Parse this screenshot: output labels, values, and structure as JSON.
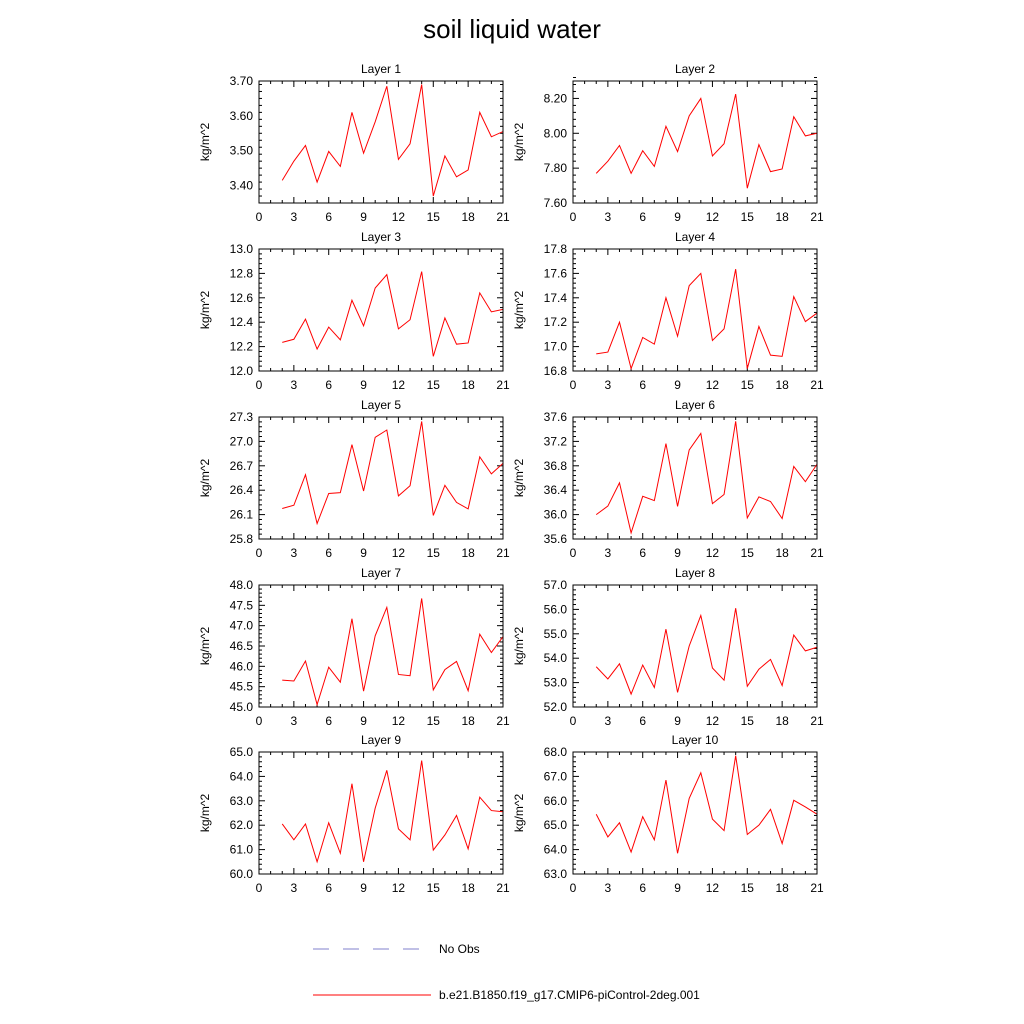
{
  "title": "soil liquid water",
  "legend": {
    "position": "bottom-center",
    "entries": [
      {
        "label": "No Obs",
        "color": "#8080cc",
        "style": "dashed"
      },
      {
        "label": "b.e21.B1850.f19_g17.CMIP6-piControl-2deg.001",
        "color": "#ff0000",
        "style": "solid"
      }
    ]
  },
  "chart_data": [
    {
      "type": "line",
      "title": "Layer 1",
      "ylabel": "kg/m^2",
      "xlim": [
        0,
        21
      ],
      "ylim": [
        3.35,
        3.7
      ],
      "xticks": [
        "0",
        "3",
        "6",
        "9",
        "12",
        "15",
        "18",
        "21"
      ],
      "yticks": [
        "3.40",
        "3.50",
        "3.60",
        "3.70"
      ],
      "x": [
        2,
        3,
        4,
        5,
        6,
        7,
        8,
        9,
        10,
        11,
        12,
        13,
        14,
        15,
        16,
        17,
        18,
        19,
        20,
        21
      ],
      "series": [
        {
          "name": "b.e21.B1850.f19_g17.CMIP6-piControl-2deg.001",
          "color": "#ff0000",
          "values": [
            3.415,
            3.47,
            3.515,
            3.41,
            3.498,
            3.455,
            3.61,
            3.493,
            3.583,
            3.685,
            3.475,
            3.52,
            3.69,
            3.37,
            3.485,
            3.425,
            3.445,
            3.61,
            3.54,
            3.555
          ]
        }
      ]
    },
    {
      "type": "line",
      "title": "Layer 2",
      "ylabel": "kg/m^2",
      "xlim": [
        0,
        21
      ],
      "ylim": [
        7.6,
        8.3
      ],
      "xticks": [
        "0",
        "3",
        "6",
        "9",
        "12",
        "15",
        "18",
        "21"
      ],
      "yticks": [
        "7.60",
        "7.80",
        "8.00",
        "8.20"
      ],
      "x": [
        2,
        3,
        4,
        5,
        6,
        7,
        8,
        9,
        10,
        11,
        12,
        13,
        14,
        15,
        16,
        17,
        18,
        19,
        20,
        21
      ],
      "series": [
        {
          "name": "b.e21.B1850.f19_g17.CMIP6-piControl-2deg.001",
          "color": "#ff0000",
          "values": [
            7.77,
            7.84,
            7.93,
            7.77,
            7.9,
            7.81,
            8.04,
            7.895,
            8.1,
            8.2,
            7.87,
            7.94,
            8.225,
            7.685,
            7.935,
            7.78,
            7.795,
            8.095,
            7.985,
            8.0
          ]
        }
      ]
    },
    {
      "type": "line",
      "title": "Layer 3",
      "ylabel": "kg/m^2",
      "xlim": [
        0,
        21
      ],
      "ylim": [
        12.0,
        13.0
      ],
      "xticks": [
        "0",
        "3",
        "6",
        "9",
        "12",
        "15",
        "18",
        "21"
      ],
      "yticks": [
        "12.0",
        "12.2",
        "12.4",
        "12.6",
        "12.8",
        "13.0"
      ],
      "x": [
        2,
        3,
        4,
        5,
        6,
        7,
        8,
        9,
        10,
        11,
        12,
        13,
        14,
        15,
        16,
        17,
        18,
        19,
        20,
        21
      ],
      "series": [
        {
          "name": "b.e21.B1850.f19_g17.CMIP6-piControl-2deg.001",
          "color": "#ff0000",
          "values": [
            12.235,
            12.26,
            12.425,
            12.18,
            12.36,
            12.255,
            12.58,
            12.37,
            12.68,
            12.79,
            12.345,
            12.42,
            12.815,
            12.12,
            12.435,
            12.22,
            12.23,
            12.64,
            12.485,
            12.505
          ]
        }
      ]
    },
    {
      "type": "line",
      "title": "Layer 4",
      "ylabel": "kg/m^2",
      "xlim": [
        0,
        21
      ],
      "ylim": [
        16.8,
        17.8
      ],
      "xticks": [
        "0",
        "3",
        "6",
        "9",
        "12",
        "15",
        "18",
        "21"
      ],
      "yticks": [
        "16.8",
        "17.0",
        "17.2",
        "17.4",
        "17.6",
        "17.8"
      ],
      "x": [
        2,
        3,
        4,
        5,
        6,
        7,
        8,
        9,
        10,
        11,
        12,
        13,
        14,
        15,
        16,
        17,
        18,
        19,
        20,
        21
      ],
      "series": [
        {
          "name": "b.e21.B1850.f19_g17.CMIP6-piControl-2deg.001",
          "color": "#ff0000",
          "values": [
            16.94,
            16.955,
            17.2,
            16.82,
            17.075,
            17.02,
            17.4,
            17.085,
            17.5,
            17.6,
            17.05,
            17.145,
            17.635,
            16.82,
            17.165,
            16.93,
            16.92,
            17.41,
            17.205,
            17.275
          ]
        }
      ]
    },
    {
      "type": "line",
      "title": "Layer 5",
      "ylabel": "kg/m^2",
      "xlim": [
        0,
        21
      ],
      "ylim": [
        25.8,
        27.3
      ],
      "xticks": [
        "0",
        "3",
        "6",
        "9",
        "12",
        "15",
        "18",
        "21"
      ],
      "yticks": [
        "25.8",
        "26.1",
        "26.4",
        "26.7",
        "27.0",
        "27.3"
      ],
      "x": [
        2,
        3,
        4,
        5,
        6,
        7,
        8,
        9,
        10,
        11,
        12,
        13,
        14,
        15,
        16,
        17,
        18,
        19,
        20,
        21
      ],
      "series": [
        {
          "name": "b.e21.B1850.f19_g17.CMIP6-piControl-2deg.001",
          "color": "#ff0000",
          "values": [
            26.175,
            26.215,
            26.59,
            25.99,
            26.36,
            26.37,
            26.96,
            26.39,
            27.05,
            27.14,
            26.33,
            26.455,
            27.245,
            26.09,
            26.46,
            26.25,
            26.17,
            26.81,
            26.6,
            26.73
          ]
        }
      ]
    },
    {
      "type": "line",
      "title": "Layer 6",
      "ylabel": "kg/m^2",
      "xlim": [
        0,
        21
      ],
      "ylim": [
        35.6,
        37.6
      ],
      "xticks": [
        "0",
        "3",
        "6",
        "9",
        "12",
        "15",
        "18",
        "21"
      ],
      "yticks": [
        "35.6",
        "36.0",
        "36.4",
        "36.8",
        "37.2",
        "37.6"
      ],
      "x": [
        2,
        3,
        4,
        5,
        6,
        7,
        8,
        9,
        10,
        11,
        12,
        13,
        14,
        15,
        16,
        17,
        18,
        19,
        20,
        21
      ],
      "series": [
        {
          "name": "b.e21.B1850.f19_g17.CMIP6-piControl-2deg.001",
          "color": "#ff0000",
          "values": [
            36.0,
            36.14,
            36.52,
            35.7,
            36.3,
            36.23,
            37.165,
            36.135,
            37.06,
            37.33,
            36.18,
            36.33,
            37.53,
            35.945,
            36.29,
            36.215,
            35.935,
            36.79,
            36.54,
            36.825
          ]
        }
      ]
    },
    {
      "type": "line",
      "title": "Layer 7",
      "ylabel": "kg/m^2",
      "xlim": [
        0,
        21
      ],
      "ylim": [
        45.0,
        48.0
      ],
      "xticks": [
        "0",
        "3",
        "6",
        "9",
        "12",
        "15",
        "18",
        "21"
      ],
      "yticks": [
        "45.0",
        "45.5",
        "46.0",
        "46.5",
        "47.0",
        "47.5",
        "48.0"
      ],
      "x": [
        2,
        3,
        4,
        5,
        6,
        7,
        8,
        9,
        10,
        11,
        12,
        13,
        14,
        15,
        16,
        17,
        18,
        19,
        20,
        21
      ],
      "series": [
        {
          "name": "b.e21.B1850.f19_g17.CMIP6-piControl-2deg.001",
          "color": "#ff0000",
          "values": [
            45.66,
            45.64,
            46.13,
            45.06,
            45.98,
            45.61,
            47.17,
            45.39,
            46.75,
            47.45,
            45.8,
            45.77,
            47.67,
            45.42,
            45.92,
            46.12,
            45.4,
            46.79,
            46.34,
            46.73
          ]
        }
      ]
    },
    {
      "type": "line",
      "title": "Layer 8",
      "ylabel": "kg/m^2",
      "xlim": [
        0,
        21
      ],
      "ylim": [
        52.0,
        57.0
      ],
      "xticks": [
        "0",
        "3",
        "6",
        "9",
        "12",
        "15",
        "18",
        "21"
      ],
      "yticks": [
        "52.0",
        "53.0",
        "54.0",
        "55.0",
        "56.0",
        "57.0"
      ],
      "x": [
        2,
        3,
        4,
        5,
        6,
        7,
        8,
        9,
        10,
        11,
        12,
        13,
        14,
        15,
        16,
        17,
        18,
        19,
        20,
        21
      ],
      "series": [
        {
          "name": "b.e21.B1850.f19_g17.CMIP6-piControl-2deg.001",
          "color": "#ff0000",
          "values": [
            53.65,
            53.15,
            53.77,
            52.53,
            53.72,
            52.8,
            55.19,
            52.6,
            54.5,
            55.75,
            53.6,
            53.1,
            56.05,
            52.85,
            53.55,
            53.95,
            52.88,
            54.95,
            54.3,
            54.45
          ]
        }
      ]
    },
    {
      "type": "line",
      "title": "Layer 9",
      "ylabel": "kg/m^2",
      "xlim": [
        0,
        21
      ],
      "ylim": [
        60.0,
        65.0
      ],
      "xticks": [
        "0",
        "3",
        "6",
        "9",
        "12",
        "15",
        "18",
        "21"
      ],
      "yticks": [
        "60.0",
        "61.0",
        "62.0",
        "63.0",
        "64.0",
        "65.0"
      ],
      "x": [
        2,
        3,
        4,
        5,
        6,
        7,
        8,
        9,
        10,
        11,
        12,
        13,
        14,
        15,
        16,
        17,
        18,
        19,
        20,
        21
      ],
      "series": [
        {
          "name": "b.e21.B1850.f19_g17.CMIP6-piControl-2deg.001",
          "color": "#ff0000",
          "values": [
            62.05,
            61.4,
            62.05,
            60.5,
            62.1,
            60.85,
            63.7,
            60.5,
            62.7,
            64.25,
            61.85,
            61.4,
            64.65,
            60.98,
            61.6,
            62.4,
            61.03,
            63.15,
            62.6,
            62.55
          ]
        }
      ]
    },
    {
      "type": "line",
      "title": "Layer 10",
      "ylabel": "kg/m^2",
      "xlim": [
        0,
        21
      ],
      "ylim": [
        63.0,
        68.0
      ],
      "xticks": [
        "0",
        "3",
        "6",
        "9",
        "12",
        "15",
        "18",
        "21"
      ],
      "yticks": [
        "63.0",
        "64.0",
        "65.0",
        "66.0",
        "67.0",
        "68.0"
      ],
      "x": [
        2,
        3,
        4,
        5,
        6,
        7,
        8,
        9,
        10,
        11,
        12,
        13,
        14,
        15,
        16,
        17,
        18,
        19,
        20,
        21
      ],
      "series": [
        {
          "name": "b.e21.B1850.f19_g17.CMIP6-piControl-2deg.001",
          "color": "#ff0000",
          "values": [
            65.45,
            64.52,
            65.1,
            63.9,
            65.35,
            64.4,
            66.85,
            63.85,
            66.1,
            67.15,
            65.25,
            64.78,
            67.85,
            64.62,
            65.0,
            65.65,
            64.25,
            66.02,
            65.75,
            65.45
          ]
        }
      ]
    }
  ]
}
